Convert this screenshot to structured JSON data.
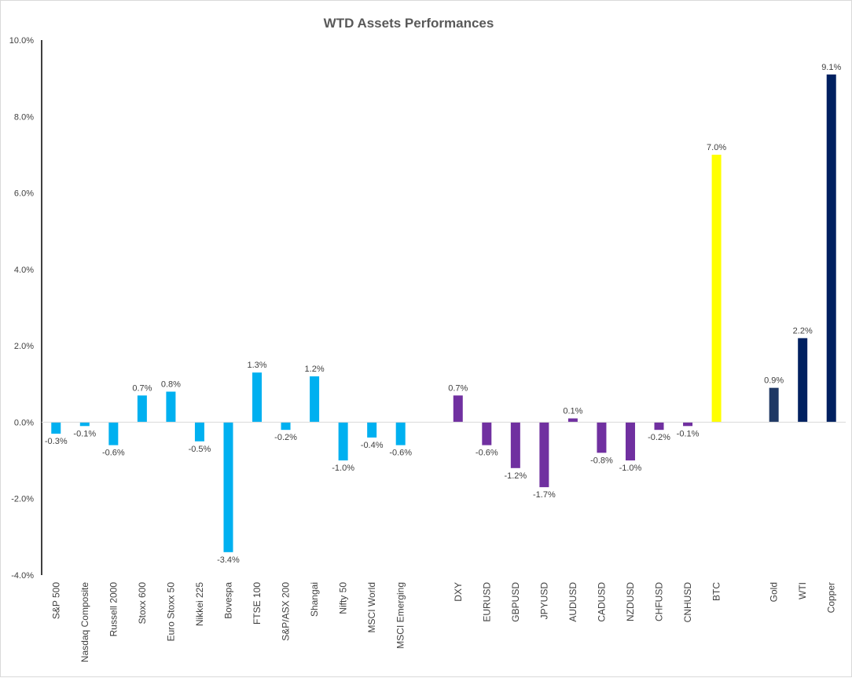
{
  "chart_data": {
    "type": "bar",
    "title": "WTD Assets Performances",
    "xlabel": "",
    "ylabel": "",
    "ylim": [
      -4.0,
      10.0
    ],
    "yticks": [
      -4.0,
      -2.0,
      0.0,
      2.0,
      4.0,
      6.0,
      8.0,
      10.0
    ],
    "ytick_labels": [
      "-4.0%",
      "-2.0%",
      "0.0%",
      "2.0%",
      "4.0%",
      "6.0%",
      "8.0%",
      "10.0%"
    ],
    "grid": false,
    "legend": "none",
    "categories": [
      "S&P 500",
      "Nasdaq Composite",
      "Russell 2000",
      "Stoxx 600",
      "Euro Stoxx 50",
      "Nikkei 225",
      "Bovespa",
      "FTSE 100",
      "S&P/ASX 200",
      "Shangai",
      "Nifty 50",
      "MSCI World",
      "MSCI Emerging",
      "",
      "DXY",
      "EURUSD",
      "GBPUSD",
      "JPYUSD",
      "AUDUSD",
      "CADUSD",
      "NZDUSD",
      "CHFUSD",
      "CNHUSD",
      "BTC",
      "",
      "Gold",
      "WTI",
      "Copper"
    ],
    "values": [
      -0.3,
      -0.1,
      -0.6,
      0.7,
      0.8,
      -0.5,
      -3.4,
      1.3,
      -0.2,
      1.2,
      -1.0,
      -0.4,
      -0.6,
      null,
      0.7,
      -0.6,
      -1.2,
      -1.7,
      0.1,
      -0.8,
      -1.0,
      -0.2,
      -0.1,
      7.0,
      null,
      0.9,
      2.2,
      9.1
    ],
    "labels": [
      "-0.3%",
      "-0.1%",
      "-0.6%",
      "0.7%",
      "0.8%",
      "-0.5%",
      "-3.4%",
      "1.3%",
      "-0.2%",
      "1.2%",
      "-1.0%",
      "-0.4%",
      "-0.6%",
      "",
      "0.7%",
      "-0.6%",
      "-1.2%",
      "-1.7%",
      "0.1%",
      "-0.8%",
      "-1.0%",
      "-0.2%",
      "-0.1%",
      "7.0%",
      "",
      "0.9%",
      "2.2%",
      "9.1%"
    ],
    "colors": [
      "#00b0f0",
      "#00b0f0",
      "#00b0f0",
      "#00b0f0",
      "#00b0f0",
      "#00b0f0",
      "#00b0f0",
      "#00b0f0",
      "#00b0f0",
      "#00b0f0",
      "#00b0f0",
      "#00b0f0",
      "#00b0f0",
      "",
      "#7030a0",
      "#7030a0",
      "#7030a0",
      "#7030a0",
      "#7030a0",
      "#7030a0",
      "#7030a0",
      "#7030a0",
      "#7030a0",
      "#ffff00",
      "",
      "#1f3864",
      "#002060",
      "#002060"
    ]
  }
}
